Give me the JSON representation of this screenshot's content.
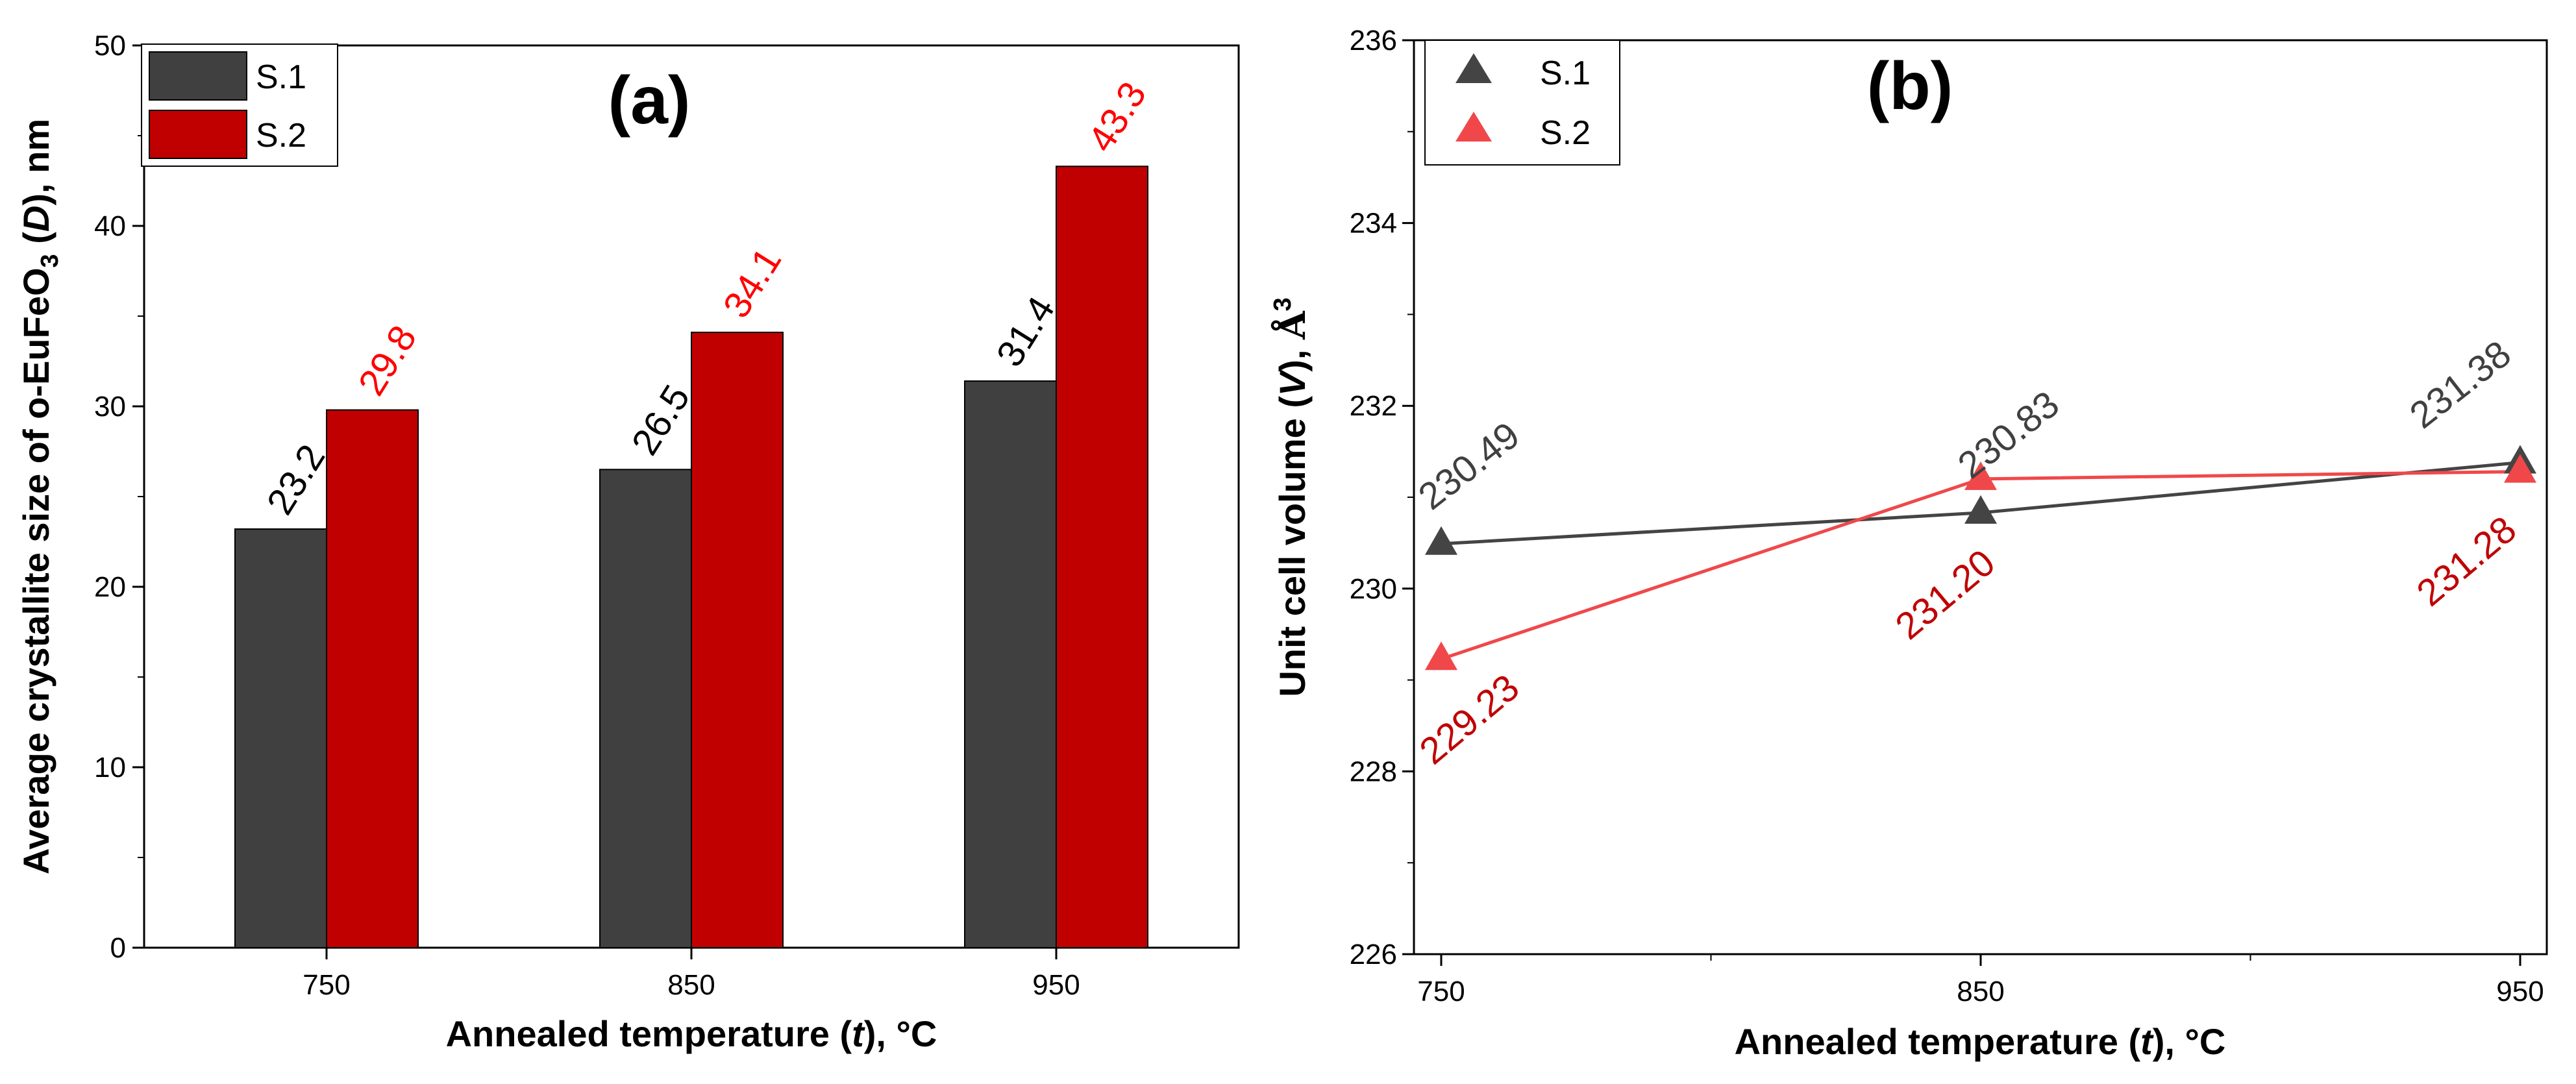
{
  "chart_data": [
    {
      "type": "bar",
      "panel_label": "(a)",
      "categories": [
        "750",
        "850",
        "950"
      ],
      "series": [
        {
          "name": "S.1",
          "values": [
            23.2,
            26.5,
            31.4
          ],
          "labels": [
            "23.2",
            "26.5",
            "31.4"
          ],
          "color": "#404040",
          "label_color": "#000000"
        },
        {
          "name": "S.2",
          "values": [
            29.8,
            34.1,
            43.3
          ],
          "labels": [
            "29.8",
            "34.1",
            "43.3"
          ],
          "color": "#c00000",
          "label_color": "#ff0000"
        }
      ],
      "ylim": [
        0,
        50
      ],
      "yticks": [
        "0",
        "10",
        "20",
        "30",
        "40",
        "50"
      ],
      "xlabel": {
        "pre": "Annealed temperature (",
        "var": "t",
        "post": "), °C"
      },
      "ylabel": {
        "pre": "Average crystallite size of o-EuFeO",
        "sub": "3",
        "mid": " (",
        "var": "D",
        "post": "), nm"
      },
      "legend_position": "top-left"
    },
    {
      "type": "line",
      "panel_label": "(b)",
      "x": [
        750,
        850,
        950
      ],
      "xticks": [
        "750",
        "850",
        "950"
      ],
      "series": [
        {
          "name": "S.1",
          "values": [
            230.49,
            230.83,
            231.38
          ],
          "labels": [
            "230.49",
            "230.83",
            "231.38"
          ],
          "color": "#444444",
          "label_color": "#404040"
        },
        {
          "name": "S.2",
          "values": [
            229.23,
            231.2,
            231.28
          ],
          "labels": [
            "229.23",
            "231.20",
            "231.28"
          ],
          "color": "#f0484a",
          "label_color": "#c00000"
        }
      ],
      "ylim": [
        226,
        236
      ],
      "xlim": [
        750,
        950
      ],
      "yticks": [
        "226",
        "228",
        "230",
        "232",
        "234",
        "236"
      ],
      "xlabel": {
        "pre": "Annealed temperature (",
        "var": "t",
        "post": "), °C"
      },
      "ylabel": {
        "pre": "Unit cell volume (",
        "var": "V",
        "post": "), ",
        "unit": "Å",
        "sup": "3"
      },
      "legend_position": "top-left"
    }
  ]
}
